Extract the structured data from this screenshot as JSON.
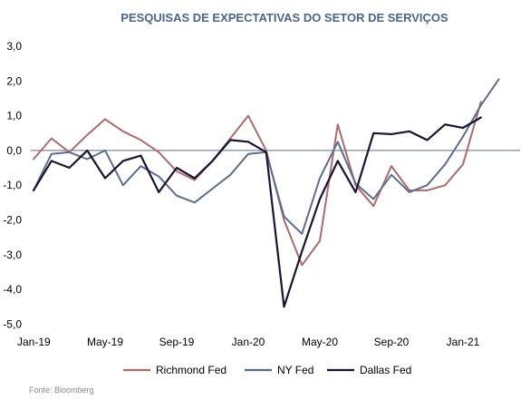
{
  "chart_data": {
    "type": "line",
    "title": "PESQUISAS DE EXPECTATIVAS DO SETOR DE SERVIÇOS",
    "source": "Fonte: Bloomberg",
    "ylim": [
      -5.0,
      3.0
    ],
    "yticks": [
      3.0,
      2.0,
      1.0,
      0.0,
      -1.0,
      -2.0,
      -3.0,
      -4.0,
      -5.0
    ],
    "ytick_labels": [
      "3,0",
      "2,0",
      "1,0",
      "0,0",
      "-1,0",
      "-2,0",
      "-3,0",
      "-4,0",
      "-5,0"
    ],
    "xticks": [
      "Jan-19",
      "May-19",
      "Sep-19",
      "Jan-20",
      "May-20",
      "Sep-20",
      "Jan-21"
    ],
    "xtick_index": [
      0,
      4,
      8,
      12,
      16,
      20,
      24
    ],
    "x": [
      "Jan-19",
      "Feb-19",
      "Mar-19",
      "Apr-19",
      "May-19",
      "Jun-19",
      "Jul-19",
      "Aug-19",
      "Sep-19",
      "Oct-19",
      "Nov-19",
      "Dec-19",
      "Jan-20",
      "Feb-20",
      "Mar-20",
      "Apr-20",
      "May-20",
      "Jun-20",
      "Jul-20",
      "Aug-20",
      "Sep-20",
      "Oct-20",
      "Nov-20",
      "Dec-20",
      "Jan-21",
      "Feb-21",
      "Mar-21"
    ],
    "zero_line": true,
    "grid": false,
    "legend_position": "bottom",
    "series": [
      {
        "name": "Richmond Fed",
        "color": "#b06a6a",
        "values": [
          -0.25,
          0.35,
          -0.05,
          0.45,
          0.9,
          0.55,
          0.3,
          -0.05,
          -0.6,
          -0.85,
          -0.3,
          0.35,
          1.0,
          0.0,
          -2.0,
          -3.3,
          -2.6,
          0.75,
          -1.0,
          -1.6,
          -0.45,
          -1.15,
          -1.15,
          -1.0,
          -0.4,
          1.4,
          null
        ]
      },
      {
        "name": "NY Fed",
        "color": "#5a6e90",
        "values": [
          -1.15,
          -0.1,
          -0.05,
          -0.25,
          0.0,
          -1.0,
          -0.45,
          -0.75,
          -1.3,
          -1.5,
          -1.1,
          -0.7,
          -0.1,
          -0.05,
          -1.9,
          -2.4,
          -0.8,
          0.25,
          -0.95,
          -1.4,
          -0.7,
          -1.2,
          -1.0,
          -0.4,
          0.4,
          1.3,
          2.05
        ]
      },
      {
        "name": "Dallas Fed",
        "color": "#1a1433",
        "values": [
          -1.15,
          -0.3,
          -0.5,
          0.0,
          -0.8,
          -0.3,
          -0.15,
          -1.2,
          -0.5,
          -0.8,
          -0.3,
          0.3,
          0.25,
          -0.05,
          -4.5,
          -2.9,
          -1.4,
          -0.3,
          -1.2,
          0.5,
          0.47,
          0.55,
          0.3,
          0.75,
          0.65,
          0.95,
          null
        ]
      }
    ]
  }
}
